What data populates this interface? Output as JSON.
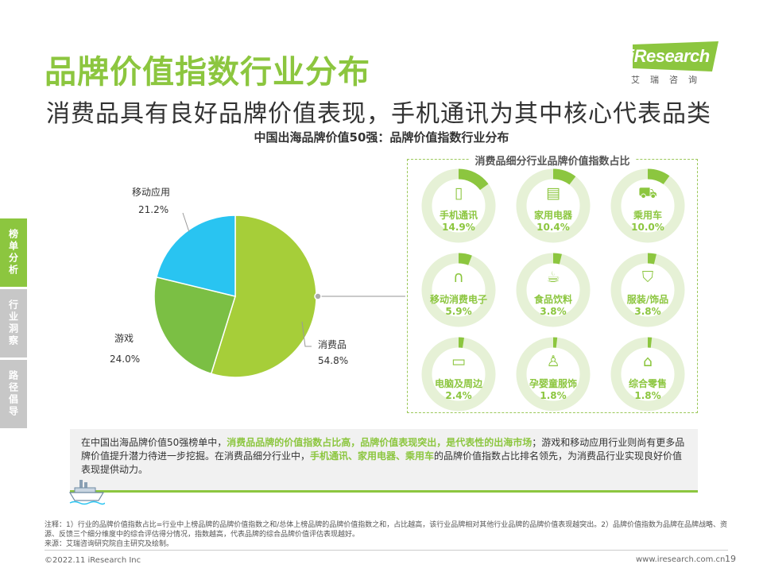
{
  "title": "品牌价值指数行业分布",
  "subtitle": "消费品具有良好品牌价值表现，手机通讯为其中核心代表品类",
  "logo": {
    "brand": "iResearch",
    "sub": "艾瑞咨询"
  },
  "side_tabs": [
    {
      "label": "榜单分析",
      "active": true
    },
    {
      "label": "行业洞察",
      "active": false
    },
    {
      "label": "路径倡导",
      "active": false
    }
  ],
  "chart_title": "中国出海品牌价值50强：品牌价值指数行业分布",
  "chart_data": {
    "type": "pie",
    "title": "中国出海品牌价值50强：品牌价值指数行业分布",
    "slices": [
      {
        "name": "消费品",
        "value": 54.8,
        "label": "54.8%",
        "color": "#a6ce39"
      },
      {
        "name": "游戏",
        "value": 24.0,
        "label": "24.0%",
        "color": "#7bbf44"
      },
      {
        "name": "移动应用",
        "value": 21.2,
        "label": "21.2%",
        "color": "#29c4f1"
      }
    ]
  },
  "categories_panel": {
    "title": "消费品细分行业品牌价值指数占比",
    "items": [
      {
        "name": "手机通讯",
        "value": "14.9%",
        "share": 14.9,
        "icon": "phone-icon",
        "glyph": "▯"
      },
      {
        "name": "家用电器",
        "value": "10.4%",
        "share": 10.4,
        "icon": "fridge-icon",
        "glyph": "▤"
      },
      {
        "name": "乘用车",
        "value": "10.0%",
        "share": 10.0,
        "icon": "car-icon",
        "glyph": "⛟"
      },
      {
        "name": "移动消费电子",
        "value": "5.9%",
        "share": 5.9,
        "icon": "headphones-icon",
        "glyph": "∩"
      },
      {
        "name": "食品饮料",
        "value": "3.8%",
        "share": 3.8,
        "icon": "food-icon",
        "glyph": "☕"
      },
      {
        "name": "服装/饰品",
        "value": "3.8%",
        "share": 3.8,
        "icon": "shirt-icon",
        "glyph": "⛉"
      },
      {
        "name": "电脑及周边",
        "value": "2.4%",
        "share": 2.4,
        "icon": "laptop-icon",
        "glyph": "▭"
      },
      {
        "name": "孕婴童服饰",
        "value": "1.8%",
        "share": 1.8,
        "icon": "baby-clothes-icon",
        "glyph": "♙"
      },
      {
        "name": "综合零售",
        "value": "1.8%",
        "share": 1.8,
        "icon": "store-icon",
        "glyph": "⌂"
      }
    ]
  },
  "summary": {
    "p1": "在中国出海品牌价值50强榜单中，",
    "h1": "消费品品牌的价值指数占比高，品牌价值表现突出，是代表性的出海市场",
    "p2": "；游戏和移动应用行业则尚有更多品牌价值提升潜力待进一步挖掘。在消费品细分行业中，",
    "h2": "手机通讯、家用电器、乘用车",
    "p3": "的品牌价值指数占比排名领先，为消费品行业实现良好价值表现提供动力。"
  },
  "notes": {
    "line1": "注释：1）行业的品牌价值指数占比=行业中上榜品牌的品牌价值指数之和/总体上榜品牌的品牌价值指数之和，占比越高，该行业品牌相对其他行业品牌的品牌价值表现越突出。2）品牌价值指数为品牌在品牌战略、资源、反馈三个细分维度中的综合评估得分情况，指数越高，代表品牌的综合品牌价值评估表现越好。",
    "line2": "来源：艾瑞咨询研究院自主研究及绘制。"
  },
  "footer": {
    "copyright": "©2022.11 iResearch Inc",
    "website": "www.iresearch.com.cn",
    "page": "19"
  },
  "colors": {
    "accent": "#8cc63f",
    "ring_track": "#e6f1d6",
    "ring_fill": "#8cc63f"
  }
}
